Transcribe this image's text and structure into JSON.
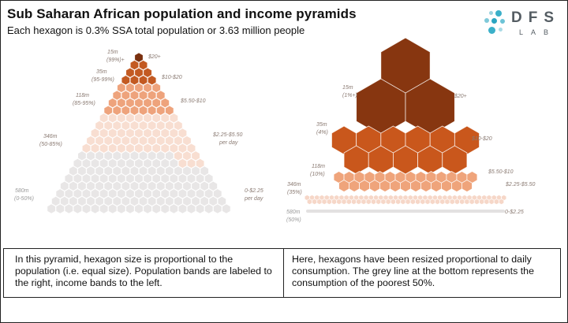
{
  "title": "Sub Saharan African population and income pyramids",
  "subtitle": "Each hexagon is 0.3% SSA total population or 3.63 million people",
  "logo": {
    "main": "DFS",
    "sub": "LAB"
  },
  "left_pyramid": {
    "bands": [
      {
        "population": "15m",
        "percentile": "(99%)+",
        "income": "$20+",
        "color": "#7a300f"
      },
      {
        "population": "35m",
        "percentile": "(95-99%)",
        "income": "$10-$20",
        "color": "#c35a22"
      },
      {
        "population": "118m",
        "percentile": "(85-95%)",
        "income": "$5.50-$10",
        "color": "#eea37c"
      },
      {
        "population": "346m",
        "percentile": "(50-85%)",
        "income": "$2.25-$5.50",
        "income_unit": "per day",
        "color": "#f8ded1"
      },
      {
        "population": "580m",
        "percentile": "(0-50%)",
        "income": "0-$2.25",
        "income_unit": "per day",
        "color": "#e8e6e6"
      }
    ]
  },
  "right_pyramid": {
    "bands": [
      {
        "population": "15m",
        "percentile": "(1%+)",
        "income": "$20+",
        "color": "#873610"
      },
      {
        "population": "35m",
        "percentile": "(4%)",
        "income": "$10-$20",
        "color": "#c9571c"
      },
      {
        "population": "118m",
        "percentile": "(10%)",
        "income": "$5.50-$10",
        "color": "#efa47b"
      },
      {
        "population": "346m",
        "percentile": "(35%)",
        "income": "$2.25-$5.50",
        "color": "#f6d7c8"
      },
      {
        "population": "580m",
        "percentile": "(50%)",
        "income": "0-$2.25",
        "color": "#e3e1e1"
      }
    ]
  },
  "captions": {
    "left": "In this pyramid, hexagon size is proportional to the population (i.e. equal size). Population bands are labeled to the right, income bands to the left.",
    "right": "Here, hexagons have been resized proportional to daily consumption. The grey line at the bottom represents the consumption of the poorest 50%."
  }
}
